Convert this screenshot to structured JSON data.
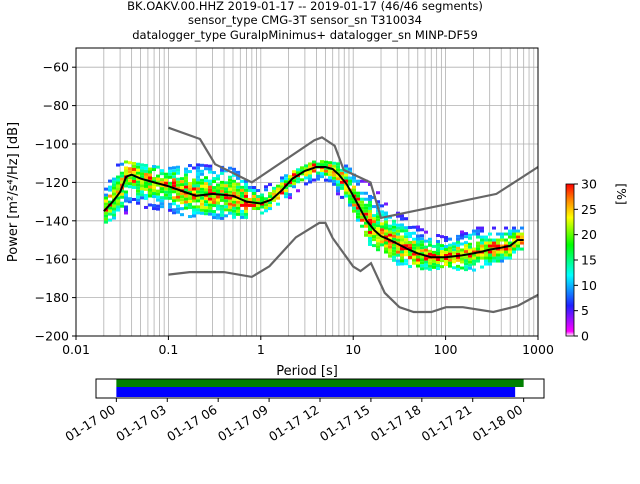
{
  "titles": {
    "line1": "BK.OAKV.00.HHZ   2019-01-17 -- 2019-01-17  (46/46 segments)",
    "line2": "sensor_type CMG-3T sensor_sn T310034",
    "line3": "datalogger_type GuralpMinimus+ datalogger_sn MINP-DF59"
  },
  "chart_data": [
    {
      "type": "heatmap",
      "subtype": "probabilistic-power-spectral-density",
      "xlabel": "Period [s]",
      "ylabel": "Power [m²/s⁴/Hz] [dB]",
      "xscale": "log",
      "xlim": [
        0.01,
        1000
      ],
      "ylim": [
        -200,
        -50
      ],
      "x_ticks": [
        {
          "v": 0.01,
          "label": "0.01"
        },
        {
          "v": 0.1,
          "label": "0.1"
        },
        {
          "v": 1,
          "label": "1"
        },
        {
          "v": 10,
          "label": "10"
        },
        {
          "v": 100,
          "label": "100"
        },
        {
          "v": 1000,
          "label": "1000"
        }
      ],
      "y_ticks": [
        {
          "v": -60,
          "label": "−60"
        },
        {
          "v": -80,
          "label": "−80"
        },
        {
          "v": -100,
          "label": "−100"
        },
        {
          "v": -120,
          "label": "−120"
        },
        {
          "v": -140,
          "label": "−140"
        },
        {
          "v": -160,
          "label": "−160"
        },
        {
          "v": -180,
          "label": "−180"
        },
        {
          "v": -200,
          "label": "−200"
        }
      ],
      "grid": true,
      "colorbar": {
        "label": "[%]",
        "range": [
          0,
          30
        ],
        "ticks": [
          {
            "v": 0,
            "label": "0"
          },
          {
            "v": 5,
            "label": "5"
          },
          {
            "v": 10,
            "label": "10"
          },
          {
            "v": 15,
            "label": "15"
          },
          {
            "v": 20,
            "label": "20"
          },
          {
            "v": 25,
            "label": "25"
          },
          {
            "v": 30,
            "label": "30"
          }
        ],
        "colors": [
          "#ffffff",
          "#ff00ff",
          "#2020ff",
          "#00ffff",
          "#00ff00",
          "#ffff00",
          "#ff8000",
          "#ff0000"
        ]
      },
      "mode_curve": {
        "period": [
          0.02,
          0.025,
          0.03,
          0.035,
          0.04,
          0.05,
          0.07,
          0.1,
          0.15,
          0.2,
          0.3,
          0.5,
          0.7,
          1.0,
          1.3,
          1.7,
          2.2,
          3.0,
          4.0,
          5.0,
          6.0,
          7.0,
          8.5,
          10,
          12,
          14,
          17,
          20,
          25,
          30,
          40,
          50,
          70,
          100,
          150,
          200,
          250,
          300,
          400,
          500,
          600,
          700
        ],
        "power": [
          -135,
          -130,
          -125,
          -117,
          -116,
          -118,
          -120,
          -122,
          -125,
          -127,
          -126,
          -127,
          -130,
          -131,
          -129,
          -124,
          -118,
          -114,
          -112,
          -112,
          -113,
          -116,
          -121,
          -127,
          -134,
          -140,
          -145,
          -148,
          -150,
          -152,
          -155,
          -157,
          -159,
          -159,
          -158,
          -157,
          -156,
          -155,
          -154,
          -153,
          -150,
          -150
        ]
      },
      "noise_model_high": {
        "period": [
          0.1,
          0.22,
          0.32,
          0.8,
          3.8,
          4.6,
          6.3,
          7.9,
          15.4,
          20,
          354.8,
          1000
        ],
        "power": [
          -91.5,
          -97.4,
          -110.5,
          -120,
          -98,
          -96.5,
          -101,
          -113.5,
          -120,
          -138.5,
          -126,
          -112
        ]
      },
      "noise_model_low": {
        "period": [
          0.1,
          0.17,
          0.4,
          0.8,
          1.24,
          2.4,
          4.3,
          5.0,
          6.0,
          10.0,
          12.0,
          15.6,
          21.9,
          31.6,
          45,
          70,
          101,
          154,
          328,
          600,
          1000
        ],
        "power": [
          -168,
          -166.7,
          -166.7,
          -169.2,
          -163.7,
          -148.6,
          -141.1,
          -141.1,
          -149,
          -163.8,
          -166.2,
          -162.1,
          -177.5,
          -185,
          -187.5,
          -187.5,
          -185,
          -185,
          -187.5,
          -184.4,
          -178.6
        ]
      },
      "density_band": {
        "period": [
          0.02,
          0.03,
          0.05,
          0.1,
          0.2,
          0.5,
          1,
          2,
          4,
          8,
          15,
          30,
          60,
          100,
          200,
          500,
          700
        ],
        "upper": [
          -125,
          -108,
          -110,
          -112,
          -110,
          -112,
          -123,
          -115,
          -108,
          -110,
          -120,
          -135,
          -145,
          -148,
          -143,
          -143,
          -143
        ],
        "lower": [
          -142,
          -138,
          -133,
          -135,
          -138,
          -140,
          -136,
          -128,
          -118,
          -128,
          -152,
          -162,
          -165,
          -165,
          -165,
          -160,
          -155
        ]
      }
    },
    {
      "type": "timeline",
      "x_ticks": [
        "01-17 00",
        "01-17 03",
        "01-17 06",
        "01-17 09",
        "01-17 12",
        "01-17 15",
        "01-17 18",
        "01-17 21",
        "01-18 00"
      ],
      "xlim_hours": [
        -1.2,
        25.2
      ],
      "bars": [
        {
          "start_hour": 0,
          "end_hour": 24.0,
          "color": "#008000"
        },
        {
          "start_hour": 0,
          "end_hour": 23.5,
          "color": "#0000ff"
        }
      ]
    }
  ]
}
